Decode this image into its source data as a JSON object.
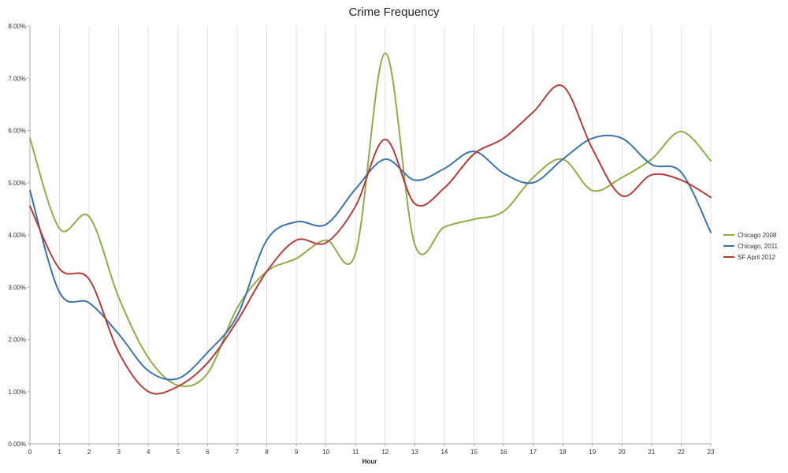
{
  "chart_data": {
    "type": "line",
    "title": "Crime Frequency",
    "xlabel": "Hour",
    "ylabel": "",
    "x": [
      0,
      1,
      2,
      3,
      4,
      5,
      6,
      7,
      8,
      9,
      10,
      11,
      12,
      13,
      14,
      15,
      16,
      17,
      18,
      19,
      20,
      21,
      22,
      23
    ],
    "ylim": [
      0,
      8
    ],
    "xlim": [
      0,
      23
    ],
    "y_tick_labels": [
      "0.00%",
      "1.00%",
      "2.00%",
      "3.00%",
      "4.00%",
      "5.00%",
      "6.00%",
      "7.00%",
      "8.00%"
    ],
    "grid": "vertical",
    "legend_position": "right",
    "colors": {
      "Chicago 2008": "#8fae45",
      "Chicago, 2011": "#3b73a8",
      "SF April 2012": "#b43b3b",
      "grid": "#e0e0e0",
      "axis": "#a9a9a9"
    },
    "series": [
      {
        "name": "Chicago 2008",
        "values": [
          5.85,
          4.12,
          4.35,
          2.8,
          1.65,
          1.12,
          1.35,
          2.6,
          3.3,
          3.55,
          3.9,
          3.65,
          7.48,
          3.82,
          4.15,
          4.3,
          4.45,
          5.1,
          5.45,
          4.85,
          5.1,
          5.45,
          5.98,
          5.42
        ]
      },
      {
        "name": "Chicago, 2011",
        "values": [
          4.85,
          2.9,
          2.7,
          2.1,
          1.4,
          1.25,
          1.75,
          2.45,
          3.9,
          4.25,
          4.2,
          4.88,
          5.45,
          5.05,
          5.27,
          5.6,
          5.18,
          5.0,
          5.45,
          5.85,
          5.85,
          5.35,
          5.2,
          4.05
        ]
      },
      {
        "name": "SF April 2012",
        "values": [
          4.55,
          3.35,
          3.15,
          1.75,
          1.0,
          1.1,
          1.55,
          2.35,
          3.3,
          3.9,
          3.85,
          4.55,
          5.83,
          4.6,
          4.9,
          5.55,
          5.85,
          6.35,
          6.85,
          5.65,
          4.75,
          5.15,
          5.05,
          4.72
        ]
      }
    ]
  }
}
